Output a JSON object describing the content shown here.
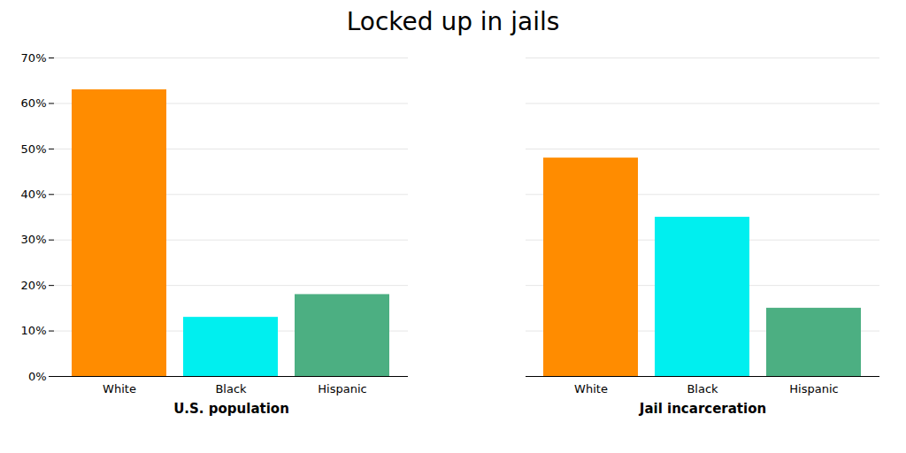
{
  "chart_data": {
    "type": "bar",
    "title": "Locked up in jails",
    "categories": [
      "U.S. population",
      "Jail incarceration"
    ],
    "series": [
      {
        "name": "White",
        "color": "#FF8C00",
        "values": [
          63,
          48
        ]
      },
      {
        "name": "Black",
        "color": "#00EFEF",
        "values": [
          13,
          35
        ]
      },
      {
        "name": "Hispanic",
        "color": "#4CAF82",
        "values": [
          18,
          15
        ]
      }
    ],
    "ylim": [
      0,
      70
    ],
    "yticks": [
      {
        "value": 0,
        "label": "0%"
      },
      {
        "value": 10,
        "label": "10%"
      },
      {
        "value": 20,
        "label": "20%"
      },
      {
        "value": 30,
        "label": "30%"
      },
      {
        "value": 40,
        "label": "40%"
      },
      {
        "value": 50,
        "label": "50%"
      },
      {
        "value": 60,
        "label": "60%"
      },
      {
        "value": 70,
        "label": "70%"
      }
    ],
    "grid": true
  }
}
